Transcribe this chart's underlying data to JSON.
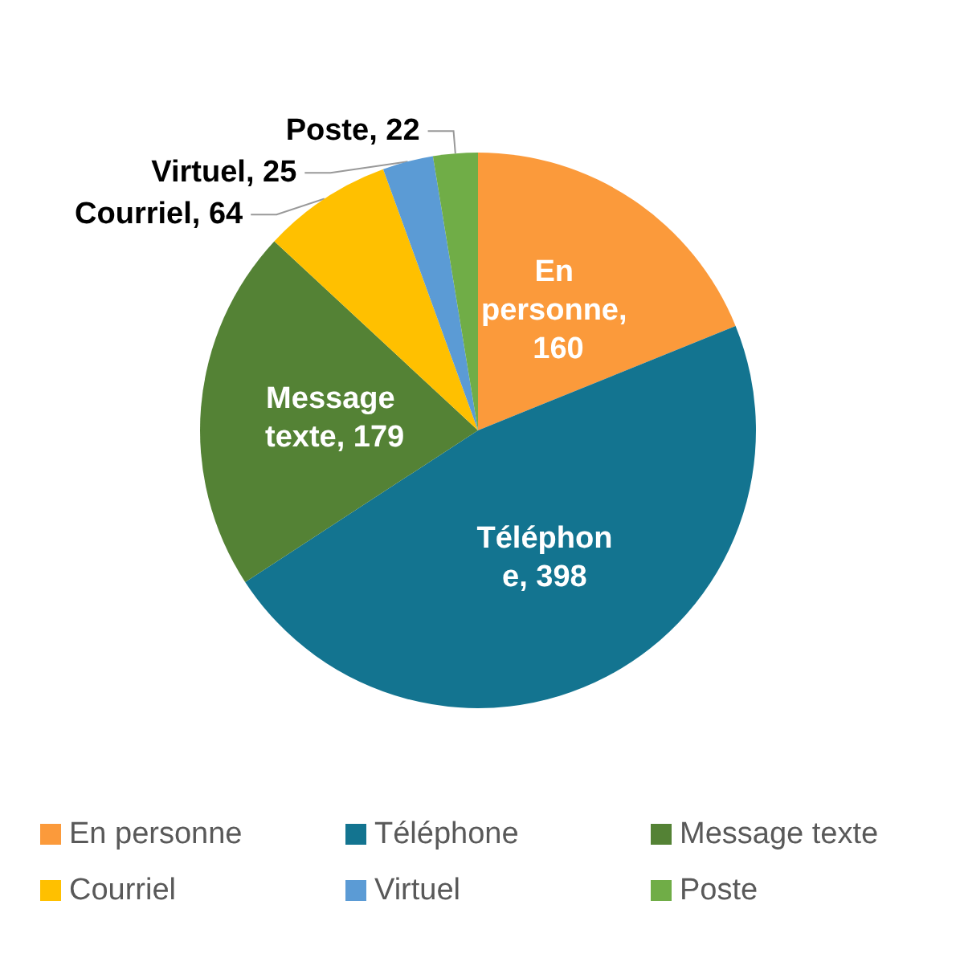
{
  "chart_data": {
    "type": "pie",
    "categories": [
      "En personne",
      "Téléphone",
      "Message texte",
      "Courriel",
      "Virtuel",
      "Poste"
    ],
    "values": [
      160,
      398,
      179,
      64,
      25,
      22
    ],
    "colors": [
      "#fb9a3b",
      "#137490",
      "#548235",
      "#ffc000",
      "#5b9bd5",
      "#70ad47"
    ],
    "value_labels": [
      "En personne, 160",
      "Téléphone, 398",
      "Message texte, 179",
      "Courriel, 64",
      "Virtuel, 25",
      "Poste, 22"
    ],
    "legend": "bottom"
  }
}
